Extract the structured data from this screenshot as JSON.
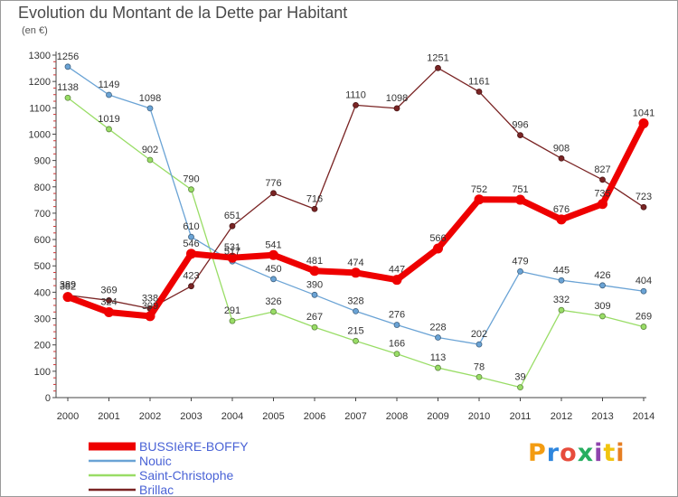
{
  "title": "Evolution du Montant de la Dette par Habitant",
  "unit": "(en €)",
  "logo": {
    "text": "Proxiti",
    "letter_colors": [
      "#f39c12",
      "#2e86de",
      "#e74c3c",
      "#27ae60",
      "#8e44ad",
      "#f1c40f",
      "#e67e22"
    ]
  },
  "chart_data": {
    "type": "line",
    "title": "Evolution du Montant de la Dette par Habitant",
    "ylabel": "(en €)",
    "xlabel": "",
    "x": [
      "2000",
      "2001",
      "2002",
      "2003",
      "2004",
      "2005",
      "2006",
      "2007",
      "2008",
      "2009",
      "2010",
      "2011",
      "2012",
      "2013",
      "2014"
    ],
    "ylim": [
      0,
      1300
    ],
    "yticks": [
      "0",
      "100",
      "200",
      "300",
      "400",
      "500",
      "600",
      "700",
      "800",
      "900",
      "1000",
      "1100",
      "1200",
      "1300"
    ],
    "grid": false,
    "legend_position": "bottom-left",
    "series": [
      {
        "name": "BUSSIèRE-BOFFY",
        "color": "#ee0000",
        "width": 7,
        "values": [
          382,
          324,
          309,
          546,
          531,
          541,
          481,
          474,
          447,
          566,
          752,
          751,
          676,
          735,
          1041
        ]
      },
      {
        "name": "Nouic",
        "color": "#6aa3d5",
        "width": 1.3,
        "values": [
          1256,
          1149,
          1098,
          610,
          517,
          450,
          390,
          328,
          276,
          228,
          202,
          479,
          445,
          426,
          404
        ]
      },
      {
        "name": "Saint-Christophe",
        "color": "#99dd66",
        "width": 1.3,
        "values": [
          1138,
          1019,
          902,
          790,
          291,
          326,
          267,
          215,
          166,
          113,
          78,
          39,
          332,
          309,
          269
        ]
      },
      {
        "name": "Brillac",
        "color": "#7a2424",
        "width": 1.3,
        "values": [
          389,
          369,
          338,
          423,
          651,
          776,
          716,
          1110,
          1098,
          1251,
          1161,
          996,
          908,
          827,
          723
        ]
      }
    ],
    "draw_order": [
      2,
      1,
      3,
      0
    ]
  }
}
